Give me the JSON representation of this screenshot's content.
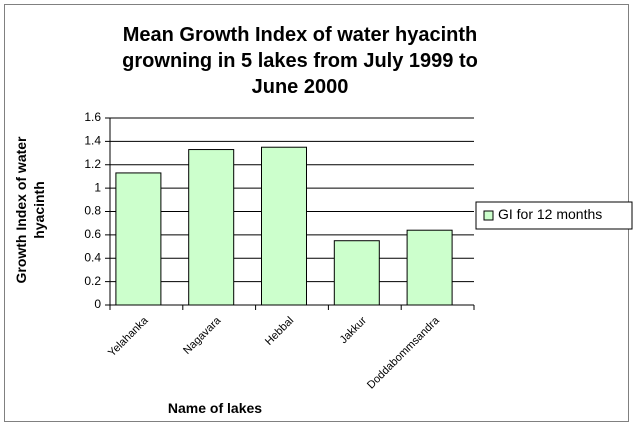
{
  "chart_data": {
    "type": "bar",
    "title": "Mean Growth Index of water hyacinth growning in 5 lakes from July 1999 to June 2000",
    "x_label": "Name of lakes",
    "y_label": "Growth Index of water hyacinth",
    "categories": [
      "Yelahanka",
      "Nagavara",
      "Hebbal",
      "Jakkur",
      "Doddabommsandra"
    ],
    "series": [
      {
        "name": "GI for 12 months",
        "color": "#ccffcc",
        "values": [
          1.13,
          1.33,
          1.35,
          0.55,
          0.64
        ]
      }
    ],
    "ylim": [
      0,
      1.6
    ],
    "yticks": [
      0,
      0.2,
      0.4,
      0.6,
      0.8,
      1,
      1.2,
      1.4,
      1.6
    ],
    "grid": true,
    "legend": "right"
  }
}
